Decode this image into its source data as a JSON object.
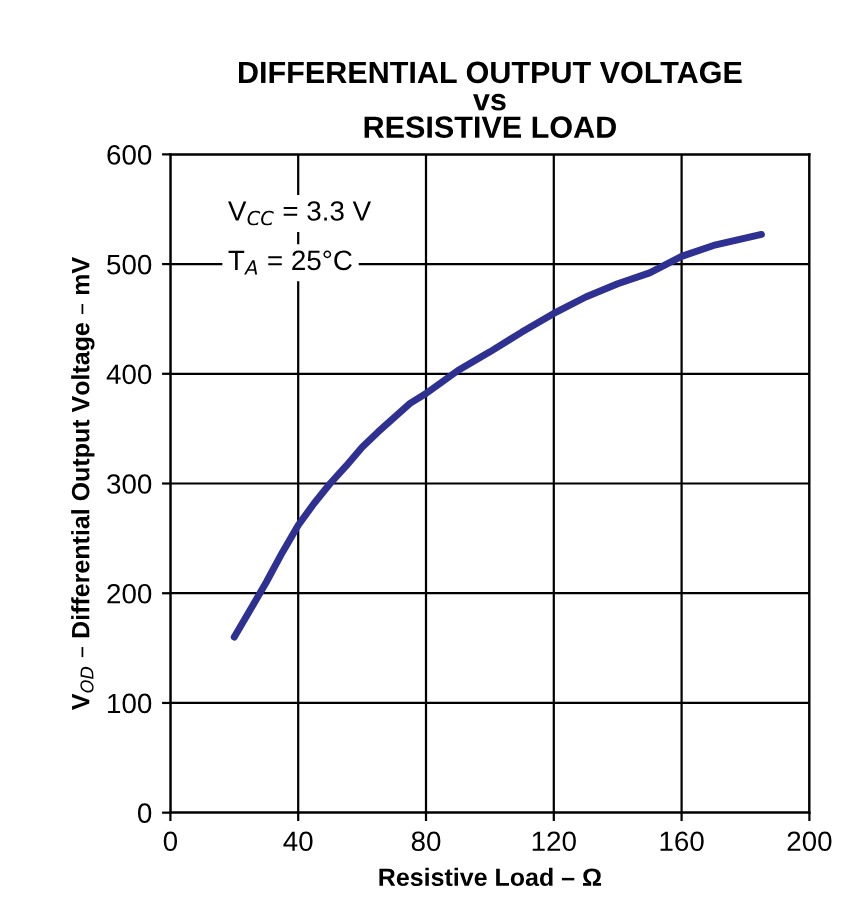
{
  "chart_data": {
    "type": "line",
    "title": "DIFFERENTIAL OUTPUT VOLTAGE\nvs\nRESISTIVE LOAD",
    "xlabel": "Resistive Load – Ω",
    "ylabel": "V$_{OD}$ – Differential Output Voltage – mV",
    "annotations": [
      "V$_{CC}$ = 3.3 V",
      "T$_{A}$ = 25°C"
    ],
    "x": [
      20,
      25,
      30,
      35,
      40,
      45,
      50,
      55,
      60,
      65,
      70,
      75,
      80,
      90,
      100,
      110,
      120,
      130,
      140,
      150,
      160,
      170,
      185
    ],
    "series": [
      {
        "color": "#2e3192",
        "values": [
          160,
          185,
          210,
          237,
          262,
          282,
          300,
          316,
          333,
          347,
          360,
          373,
          382,
          403,
          420,
          438,
          455,
          470,
          482,
          492,
          507,
          517,
          527
        ]
      }
    ],
    "xlim": [
      0,
      200
    ],
    "xticks": [
      0,
      40,
      80,
      120,
      160,
      200
    ],
    "ylim": [
      0,
      600
    ],
    "yticks": [
      0,
      100,
      200,
      300,
      400,
      500,
      600
    ],
    "grid": true,
    "line_style": "solid",
    "marker": "none"
  }
}
